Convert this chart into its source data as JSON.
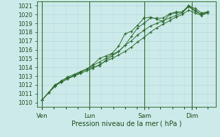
{
  "bg_color": "#cdeaea",
  "grid_color": "#b0d8d8",
  "line_color": "#2d6a2d",
  "marker_color": "#2d6a2d",
  "ylim": [
    1009.5,
    1021.5
  ],
  "yticks": [
    1010,
    1011,
    1012,
    1013,
    1014,
    1015,
    1016,
    1017,
    1018,
    1019,
    1020,
    1021
  ],
  "xlabel": "Pression niveau de la mer ( hPa )",
  "xtick_labels": [
    "Ven",
    "Lun",
    "Sam",
    "Dim"
  ],
  "xtick_positions": [
    0.0,
    3.0,
    6.5,
    9.5
  ],
  "xlim": [
    -0.3,
    11.0
  ],
  "vlines": [
    0.0,
    3.0,
    6.5,
    9.5
  ],
  "series": [
    [
      1010.3,
      1011.1,
      1011.8,
      1012.5,
      1012.8,
      1013.0,
      1013.4,
      1013.8,
      1014.0,
      1014.2,
      1014.8,
      1015.3,
      1015.8,
      1016.5,
      1017.5,
      1018.5,
      1019.0,
      1019.6,
      1019.6,
      1019.6,
      1020.1,
      1020.3,
      1020.3,
      1021.0,
      1020.7,
      1020.2,
      1020.3
    ],
    [
      1010.3,
      1011.1,
      1012.0,
      1012.3,
      1012.7,
      1013.1,
      1013.5,
      1013.8,
      1014.3,
      1015.0,
      1015.3,
      1015.6,
      1016.4,
      1017.8,
      1018.1,
      1018.8,
      1019.6,
      1019.7,
      1019.5,
      1019.2,
      1020.0,
      1020.2,
      1020.3,
      1021.0,
      1020.5,
      1020.0,
      1020.3
    ],
    [
      1010.3,
      1011.1,
      1012.0,
      1012.4,
      1012.9,
      1013.2,
      1013.5,
      1013.8,
      1014.2,
      1014.6,
      1015.0,
      1015.5,
      1015.8,
      1016.5,
      1017.0,
      1017.7,
      1018.2,
      1018.7,
      1019.0,
      1019.3,
      1019.6,
      1019.9,
      1020.2,
      1020.9,
      1020.4,
      1020.0,
      1020.3
    ],
    [
      1010.3,
      1011.1,
      1011.9,
      1012.3,
      1012.7,
      1013.0,
      1013.3,
      1013.6,
      1013.9,
      1014.3,
      1014.7,
      1015.0,
      1015.4,
      1015.8,
      1016.3,
      1016.9,
      1017.4,
      1018.0,
      1018.5,
      1018.9,
      1019.3,
      1019.7,
      1020.0,
      1020.5,
      1020.2,
      1019.9,
      1020.2
    ]
  ]
}
